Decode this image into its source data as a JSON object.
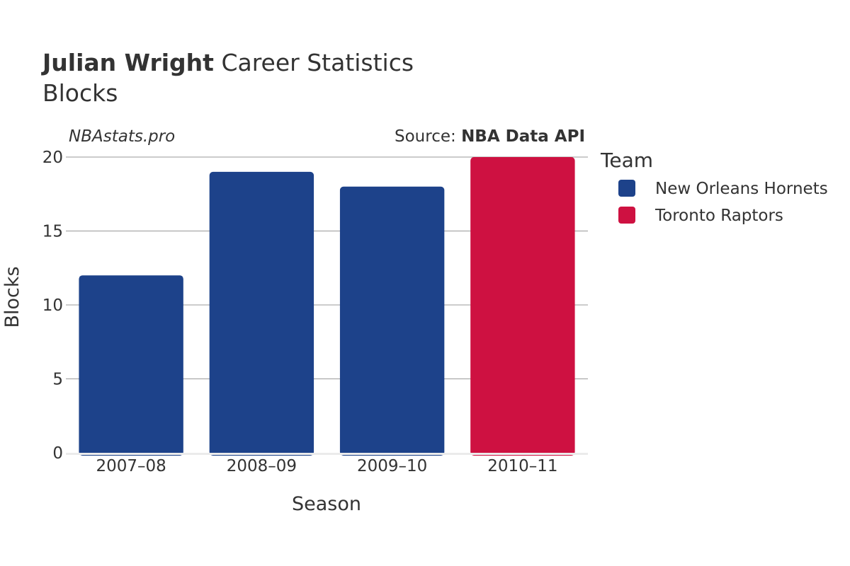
{
  "title": {
    "name": "Julian Wright",
    "rest": " Career Statistics",
    "subtitle": "Blocks"
  },
  "watermark": "NBAstats.pro",
  "source": {
    "prefix": "Source: ",
    "name": "NBA Data API"
  },
  "legend_title": "Team",
  "chart_data": {
    "type": "bar",
    "categories": [
      "2007–08",
      "2008–09",
      "2009–10",
      "2010–11"
    ],
    "values": [
      12,
      19,
      18,
      20
    ],
    "teams": [
      "New Orleans Hornets",
      "New Orleans Hornets",
      "New Orleans Hornets",
      "Toronto Raptors"
    ],
    "series": [
      {
        "name": "New Orleans Hornets",
        "color": "#1d428a"
      },
      {
        "name": "Toronto Raptors",
        "color": "#ce1141"
      }
    ],
    "xlabel": "Season",
    "ylabel": "Blocks",
    "ylim": [
      0,
      20
    ],
    "yticks": [
      0,
      5,
      10,
      15,
      20
    ],
    "grid": true,
    "legend_position": "right"
  }
}
